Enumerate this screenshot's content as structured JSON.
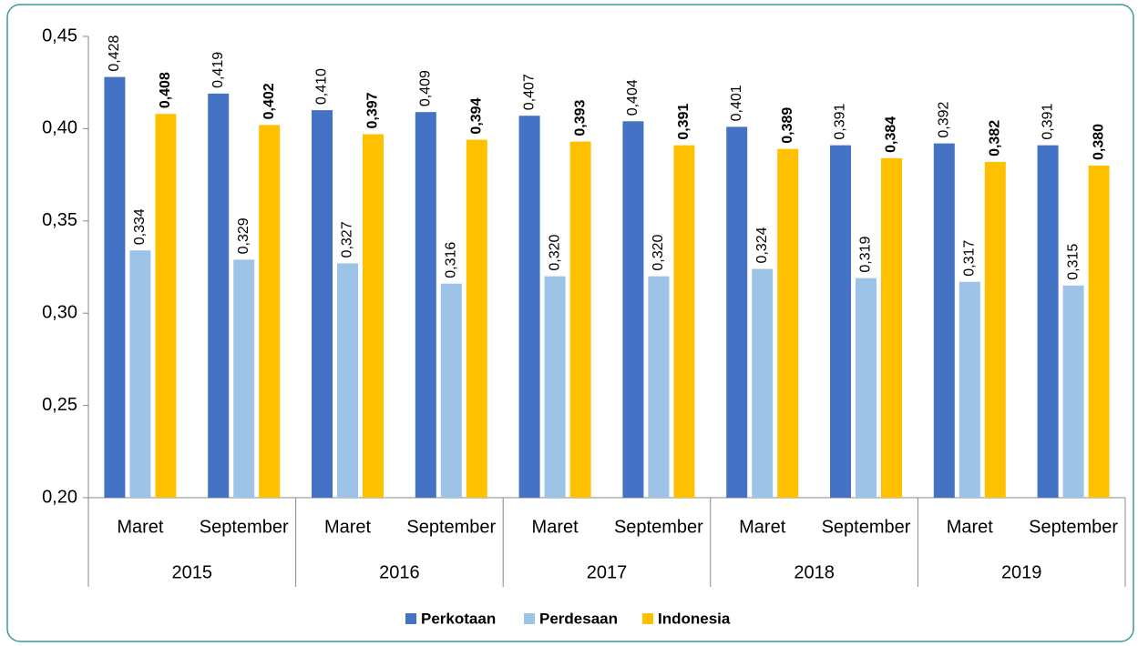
{
  "chart_data": {
    "type": "bar",
    "categories": [
      "Maret",
      "September",
      "Maret",
      "September",
      "Maret",
      "September",
      "Maret",
      "September",
      "Maret",
      "September"
    ],
    "groups": [
      "2015",
      "2016",
      "2017",
      "2018",
      "2019"
    ],
    "series": [
      {
        "name": "Perkotaan",
        "color": "#4472c4",
        "bold_labels": false,
        "values": [
          0.428,
          0.419,
          0.41,
          0.409,
          0.407,
          0.404,
          0.401,
          0.391,
          0.392,
          0.391
        ],
        "value_labels": [
          "0,428",
          "0,419",
          "0,410",
          "0,409",
          "0,407",
          "0,404",
          "0,401",
          "0,391",
          "0,392",
          "0,391"
        ]
      },
      {
        "name": "Perdesaan",
        "color": "#9dc3e6",
        "bold_labels": false,
        "values": [
          0.334,
          0.329,
          0.327,
          0.316,
          0.32,
          0.32,
          0.324,
          0.319,
          0.317,
          0.315
        ],
        "value_labels": [
          "0,334",
          "0,329",
          "0,327",
          "0,316",
          "0,320",
          "0,320",
          "0,324",
          "0,319",
          "0,317",
          "0,315"
        ]
      },
      {
        "name": "Indonesia",
        "color": "#ffc000",
        "bold_labels": true,
        "values": [
          0.408,
          0.402,
          0.397,
          0.394,
          0.393,
          0.391,
          0.389,
          0.384,
          0.382,
          0.38
        ],
        "value_labels": [
          "0,408",
          "0,402",
          "0,397",
          "0,394",
          "0,393",
          "0,391",
          "0,389",
          "0,384",
          "0,382",
          "0,380"
        ]
      }
    ],
    "ylim": [
      0.2,
      0.45
    ],
    "yticks": [
      {
        "value": 0.2,
        "label": "0,20"
      },
      {
        "value": 0.25,
        "label": "0,25"
      },
      {
        "value": 0.3,
        "label": "0,30"
      },
      {
        "value": 0.35,
        "label": "0,35"
      },
      {
        "value": 0.4,
        "label": "0,40"
      },
      {
        "value": 0.45,
        "label": "0,45"
      }
    ],
    "grid": false,
    "legend": "bottom"
  }
}
